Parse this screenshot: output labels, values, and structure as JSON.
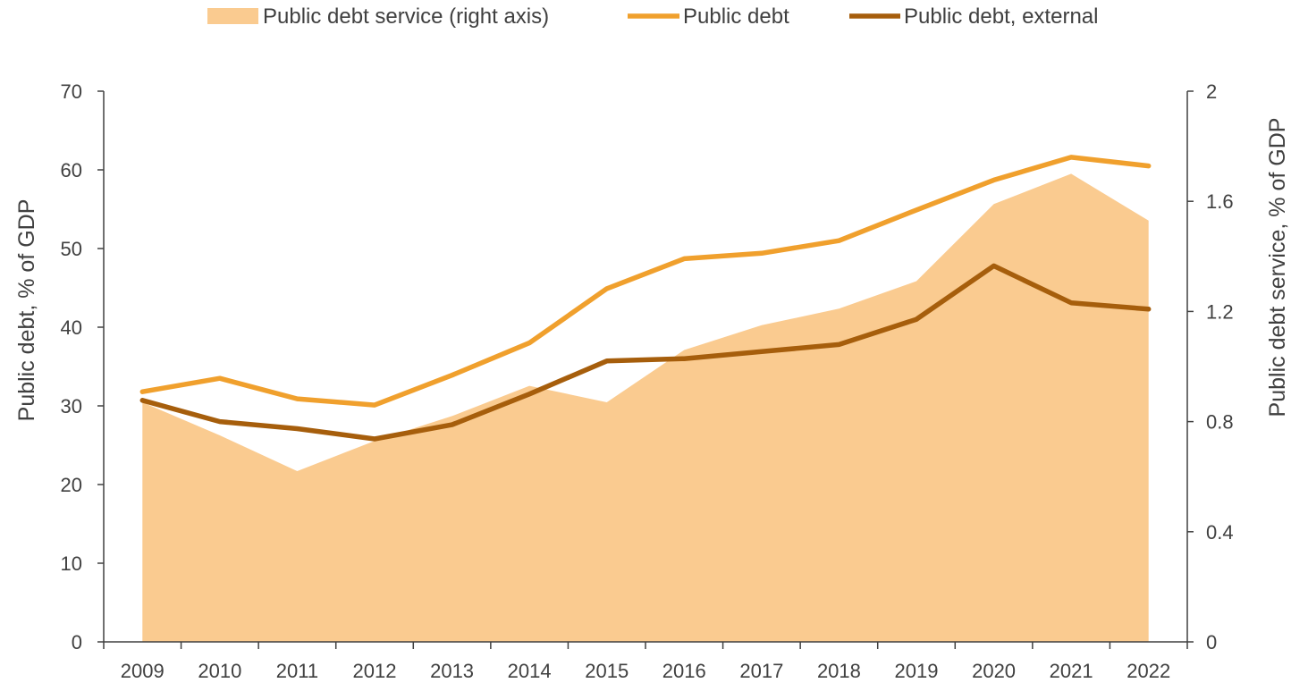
{
  "chart_data": {
    "type": "line",
    "x": [
      "2009",
      "2010",
      "2011",
      "2012",
      "2013",
      "2014",
      "2015",
      "2016",
      "2017",
      "2018",
      "2019",
      "2020",
      "2021",
      "2022"
    ],
    "series": [
      {
        "name": "Public debt service (right axis)",
        "kind": "area",
        "axis": "right",
        "color": "#FACB90",
        "values": [
          0.87,
          0.75,
          0.62,
          0.73,
          0.82,
          0.93,
          0.87,
          1.06,
          1.15,
          1.21,
          1.31,
          1.59,
          1.7,
          1.53
        ]
      },
      {
        "name": "Public debt",
        "kind": "line",
        "axis": "left",
        "color": "#F0A02D",
        "values": [
          31.8,
          33.5,
          30.9,
          30.1,
          33.9,
          38.0,
          44.9,
          48.7,
          49.4,
          51.0,
          54.9,
          58.7,
          61.6,
          60.5
        ]
      },
      {
        "name": "Public debt, external",
        "kind": "line",
        "axis": "left",
        "color": "#A65E0C",
        "values": [
          30.7,
          28.0,
          27.1,
          25.8,
          27.6,
          31.5,
          35.7,
          36.0,
          36.9,
          37.8,
          41.0,
          47.8,
          43.1,
          42.3
        ]
      }
    ],
    "ylabel_left": "Public debt, % of GDP",
    "ylabel_right": "Public debt service, % of GDP",
    "ylim_left": [
      0,
      70
    ],
    "yticks_left": [
      "0",
      "10",
      "20",
      "30",
      "40",
      "50",
      "60",
      "70"
    ],
    "ylim_right": [
      0,
      2
    ],
    "yticks_right": [
      "0",
      "0.4",
      "0.8",
      "1.2",
      "1.6",
      "2"
    ],
    "grid": false,
    "legend_position": "top"
  }
}
